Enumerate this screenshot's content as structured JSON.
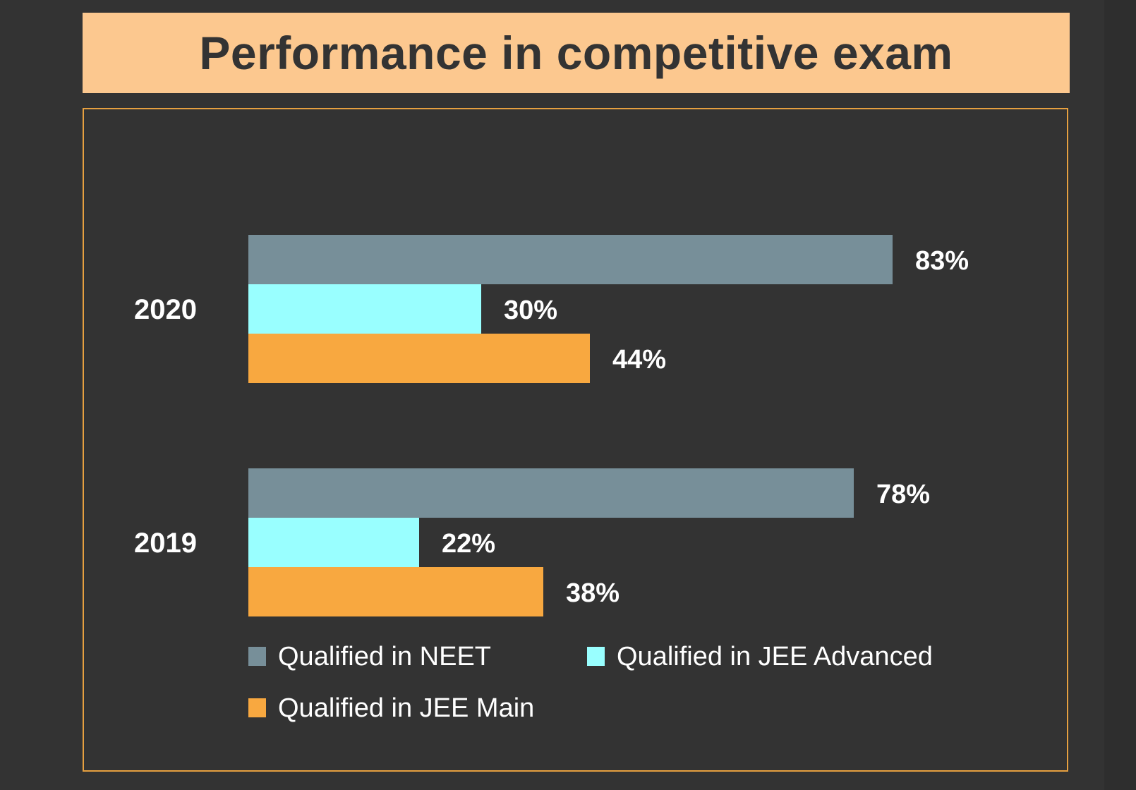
{
  "title": "Performance in competitive exam",
  "colors": {
    "background": "#333333",
    "banner": "#fcc88f",
    "frame_border": "#e6a040",
    "text_light": "#ffffff",
    "text_dark": "#333333"
  },
  "chart_data": {
    "type": "bar",
    "orientation": "horizontal",
    "categories": [
      "2020",
      "2019"
    ],
    "series": [
      {
        "name": "Qualified in NEET",
        "color": "#778f99",
        "values": [
          83,
          78
        ],
        "labels": [
          "83%",
          "78%"
        ]
      },
      {
        "name": "Qualified in JEE Advanced",
        "color": "#99ffff",
        "values": [
          30,
          22
        ],
        "labels": [
          "30%",
          "22%"
        ]
      },
      {
        "name": "Qualified in JEE Main",
        "color": "#f8a840",
        "values": [
          44,
          38
        ],
        "labels": [
          "44%",
          "38%"
        ]
      }
    ],
    "xlim": [
      0,
      100
    ],
    "grid": false,
    "legend": "bottom"
  }
}
